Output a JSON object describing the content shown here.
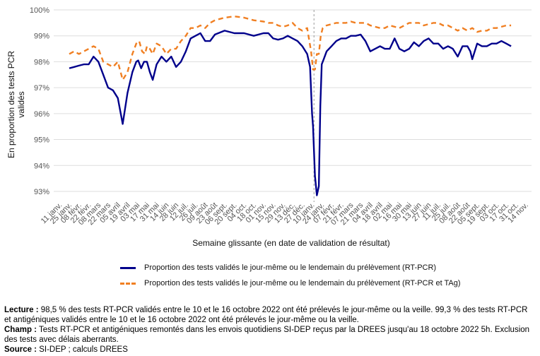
{
  "chart_data": {
    "type": "line",
    "ylabel": "En proportion des tests PCR validés",
    "xlabel": "Semaine glissante (en date de validation de résultat)",
    "ylim": [
      92.7,
      100
    ],
    "yticks": [
      "93%",
      "94%",
      "95%",
      "96%",
      "97%",
      "98%",
      "99%",
      "100%"
    ],
    "x_ticks": [
      "11 janv.",
      "25 janv.",
      "08 févr.",
      "22 févr.",
      "08 mars",
      "22 mars",
      "05 avril",
      "19 avril",
      "03 mai",
      "17 mai",
      "31 mai",
      "14 juin",
      "28 juin",
      "12 juil.",
      "26 juil.",
      "09 août",
      "23 août",
      "06 sept.",
      "20 sept.",
      "04 oct.",
      "18 oct.",
      "01 nov.",
      "15 nov.",
      "29 nov.",
      "13 déc.",
      "27 déc.",
      "10 janv.",
      "24 janv.",
      "07 févr.",
      "21 févr.",
      "07 mars",
      "21 mars",
      "04 avril",
      "18 avril",
      "02 mai",
      "16 mai",
      "30 mai",
      "13 juin",
      "27 juin",
      "11 juil.",
      "25 juil.",
      "08 août",
      "22 août",
      "05 sept.",
      "19 sept.",
      "03 oct.",
      "17 oct.",
      "31 oct.",
      "14 nov."
    ],
    "x_unit": "week index (0 = 11 janv. 2021)",
    "year_break_x": 26.2,
    "grid": true,
    "legend_position": "bottom",
    "series": [
      {
        "name": "Proportion des tests validés le jour-même ou le lendemain du prélèvement (RT-PCR)",
        "color": "#00008b",
        "style": "solid",
        "x": [
          1.0,
          1.5,
          2.0,
          2.5,
          3.0,
          3.5,
          4.0,
          4.5,
          5.0,
          5.5,
          6.0,
          6.5,
          7.0,
          7.5,
          7.9,
          8.1,
          8.4,
          8.7,
          9.0,
          9.3,
          9.6,
          10.0,
          10.5,
          11.0,
          11.5,
          12.0,
          12.5,
          13.0,
          13.5,
          14.0,
          14.5,
          15.0,
          15.5,
          16.0,
          17.0,
          18.0,
          19.0,
          20.0,
          21.0,
          21.5,
          22.0,
          22.5,
          23.0,
          23.5,
          24.0,
          24.5,
          25.0,
          25.5,
          25.8,
          26.0,
          26.1,
          26.3,
          26.5,
          26.7,
          26.85,
          27.0,
          27.2,
          27.5,
          28.0,
          28.5,
          29.0,
          29.5,
          30.0,
          30.5,
          31.0,
          31.5,
          32.0,
          32.5,
          33.0,
          33.5,
          34.0,
          34.5,
          35.0,
          35.5,
          36.0,
          36.5,
          37.0,
          37.5,
          38.0,
          38.5,
          39.0,
          39.5,
          40.0,
          40.5,
          41.0,
          41.5,
          42.0,
          42.3,
          42.5,
          43.0,
          43.5,
          44.0,
          44.5,
          45.0,
          45.5,
          46.0,
          46.5
        ],
        "values": [
          97.75,
          97.8,
          97.85,
          97.9,
          97.9,
          98.2,
          98.0,
          97.5,
          97.0,
          96.9,
          96.6,
          95.6,
          96.8,
          97.6,
          98.0,
          98.05,
          97.75,
          98.0,
          98.0,
          97.6,
          97.3,
          97.9,
          98.2,
          98.0,
          98.2,
          97.8,
          98.0,
          98.4,
          98.9,
          99.0,
          99.1,
          98.8,
          98.8,
          99.05,
          99.2,
          99.1,
          99.1,
          99.0,
          99.1,
          99.1,
          98.9,
          98.85,
          98.9,
          99.0,
          98.9,
          98.8,
          98.6,
          98.3,
          97.8,
          96.0,
          95.5,
          93.6,
          92.85,
          93.2,
          96.3,
          97.9,
          98.1,
          98.4,
          98.6,
          98.8,
          98.9,
          98.9,
          99.0,
          99.0,
          99.05,
          98.8,
          98.4,
          98.5,
          98.6,
          98.5,
          98.5,
          98.9,
          98.5,
          98.4,
          98.5,
          98.75,
          98.6,
          98.8,
          98.9,
          98.7,
          98.7,
          98.5,
          98.6,
          98.5,
          98.2,
          98.6,
          98.6,
          98.4,
          98.1,
          98.7,
          98.6,
          98.6,
          98.7,
          98.7,
          98.8,
          98.7,
          98.6
        ]
      },
      {
        "name": "Proportion des tests validés le jour-même ou le lendemain du prélèvement (RT-PCR et TAg)",
        "color": "#f07f22",
        "style": "dashed",
        "x": [
          1.0,
          1.5,
          2.0,
          2.5,
          3.0,
          3.5,
          4.0,
          4.5,
          5.0,
          5.5,
          6.0,
          6.5,
          7.0,
          7.5,
          7.9,
          8.2,
          8.5,
          8.8,
          9.0,
          9.3,
          9.6,
          10.0,
          10.5,
          11.0,
          11.5,
          12.0,
          12.5,
          13.0,
          13.5,
          14.0,
          14.5,
          15.0,
          15.5,
          16.0,
          17.0,
          18.0,
          19.0,
          20.0,
          21.0,
          21.5,
          22.0,
          22.5,
          23.0,
          23.5,
          24.0,
          24.5,
          25.0,
          25.5,
          25.9,
          26.1,
          26.3,
          26.5,
          26.7,
          26.9,
          27.1,
          27.5,
          28.0,
          28.5,
          29.0,
          29.5,
          30.0,
          30.5,
          31.0,
          31.5,
          32.0,
          32.5,
          33.0,
          33.5,
          34.0,
          34.5,
          35.0,
          35.5,
          36.0,
          36.5,
          37.0,
          37.5,
          38.0,
          38.5,
          39.0,
          39.5,
          40.0,
          40.5,
          41.0,
          41.5,
          42.0,
          42.5,
          43.0,
          43.5,
          44.0,
          44.5,
          45.0,
          45.5,
          46.0,
          46.5
        ],
        "values": [
          98.3,
          98.4,
          98.3,
          98.4,
          98.5,
          98.6,
          98.5,
          98.0,
          97.9,
          97.8,
          98.0,
          97.3,
          97.6,
          98.3,
          98.7,
          98.8,
          98.4,
          98.3,
          98.6,
          98.5,
          98.3,
          98.7,
          98.6,
          98.3,
          98.5,
          98.5,
          98.8,
          99.0,
          99.3,
          99.3,
          99.4,
          99.3,
          99.5,
          99.6,
          99.7,
          99.75,
          99.7,
          99.6,
          99.55,
          99.5,
          99.5,
          99.4,
          99.35,
          99.4,
          99.5,
          99.3,
          99.2,
          99.3,
          98.4,
          97.7,
          97.7,
          98.3,
          98.3,
          99.0,
          99.3,
          99.4,
          99.45,
          99.5,
          99.5,
          99.5,
          99.55,
          99.5,
          99.5,
          99.5,
          99.4,
          99.35,
          99.3,
          99.3,
          99.4,
          99.35,
          99.3,
          99.4,
          99.5,
          99.5,
          99.5,
          99.4,
          99.45,
          99.5,
          99.5,
          99.4,
          99.4,
          99.3,
          99.2,
          99.3,
          99.2,
          99.3,
          99.15,
          99.2,
          99.2,
          99.3,
          99.3,
          99.35,
          99.4,
          99.4
        ]
      }
    ]
  },
  "notes": {
    "lecture_label": "Lecture :",
    "lecture_text": " 98,5 % des tests RT-PCR validés entre le 10 et le 16 octobre 2022 ont été prélevés le jour-même ou la veille. 99,3 % des tests RT-PCR et antigéniques validés entre le 10 et le 16 octobre 2022 ont été prélevés le jour-même ou la veille.",
    "champ_label": "Champ :",
    "champ_text": " Tests RT-PCR et antigéniques remontés dans les envois quotidiens SI-DEP reçus par la DREES jusqu'au 18 octobre 2022 5h. Exclusion des tests avec délais aberrants.",
    "source_label": "Source :",
    "source_text": " SI-DEP ; calculs DREES"
  }
}
